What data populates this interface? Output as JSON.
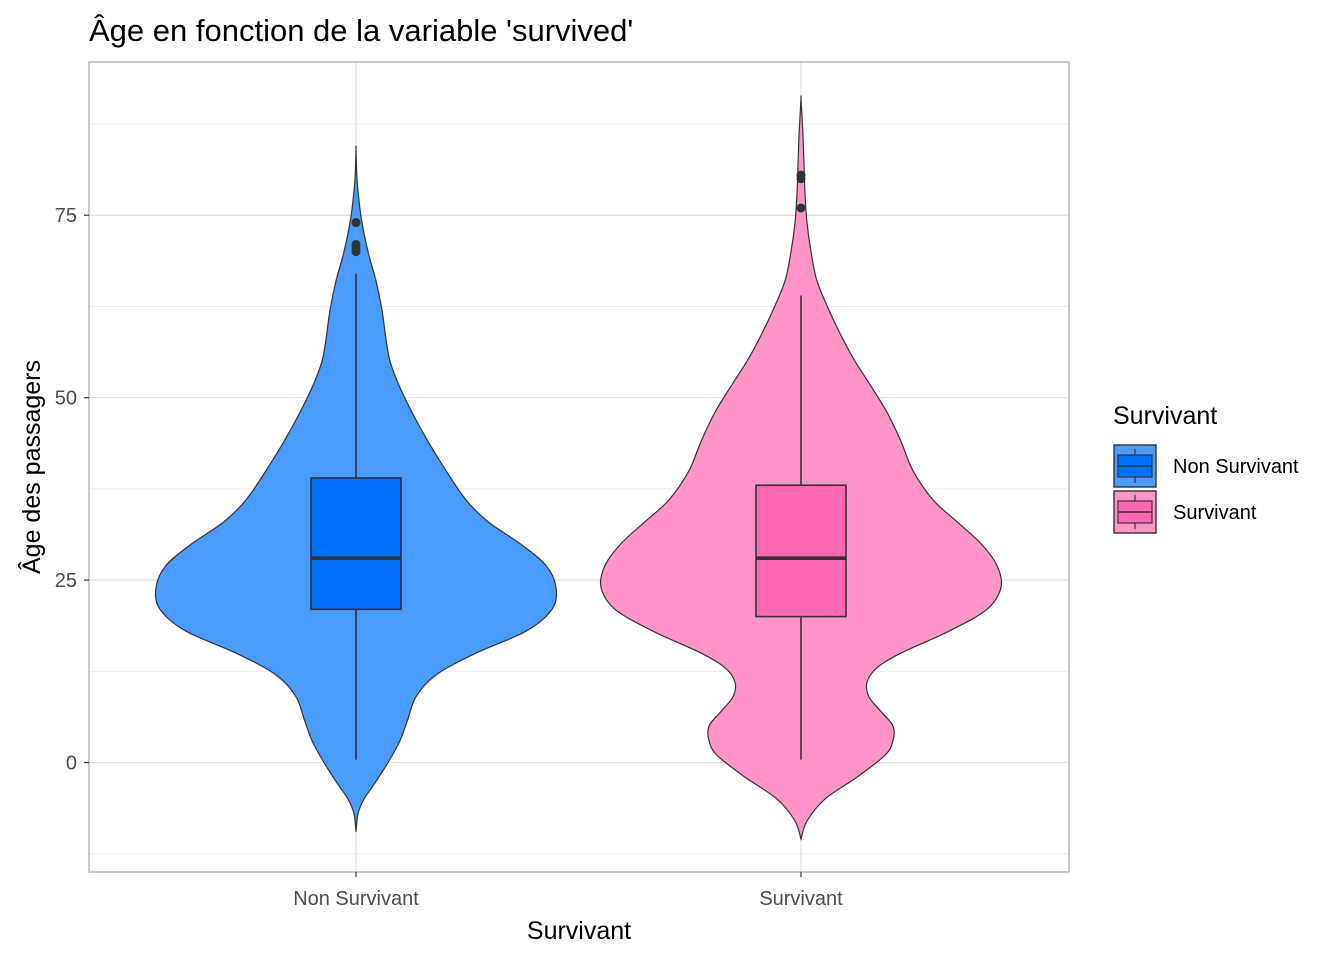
{
  "chart_data": {
    "type": "violin",
    "title": "Âge en fonction de la variable 'survived'",
    "xlabel": "Survivant",
    "ylabel": "Âge des passagers",
    "ylim": [
      -15,
      96
    ],
    "yticks": [
      0,
      25,
      50,
      75
    ],
    "grid": true,
    "legend": {
      "title": "Survivant",
      "position": "right",
      "entries": [
        "Non Survivant",
        "Survivant"
      ]
    },
    "categories": [
      "Non Survivant",
      "Survivant"
    ],
    "series": [
      {
        "name": "Non Survivant",
        "color": "#0070FF",
        "violin_color": "#4A9BFF",
        "box": {
          "q1": 21,
          "median": 28,
          "q3": 39,
          "whisker_low": 0.4,
          "whisker_high": 67
        },
        "outliers": [
          70,
          70.5,
          71,
          74
        ],
        "range": [
          -9.5,
          84
        ],
        "density": [
          [
            -9.5,
            0.0
          ],
          [
            -7,
            0.01
          ],
          [
            -5,
            0.04
          ],
          [
            -3,
            0.09
          ],
          [
            0,
            0.16
          ],
          [
            3,
            0.22
          ],
          [
            6,
            0.26
          ],
          [
            9,
            0.3
          ],
          [
            12,
            0.4
          ],
          [
            15,
            0.6
          ],
          [
            18,
            0.85
          ],
          [
            21,
            0.98
          ],
          [
            24,
            1.0
          ],
          [
            27,
            0.95
          ],
          [
            30,
            0.82
          ],
          [
            33,
            0.66
          ],
          [
            36,
            0.55
          ],
          [
            40,
            0.45
          ],
          [
            44,
            0.36
          ],
          [
            48,
            0.28
          ],
          [
            52,
            0.21
          ],
          [
            55,
            0.17
          ],
          [
            58,
            0.15
          ],
          [
            62,
            0.13
          ],
          [
            66,
            0.1
          ],
          [
            70,
            0.06
          ],
          [
            74,
            0.03
          ],
          [
            77,
            0.015
          ],
          [
            80,
            0.005
          ],
          [
            84,
            0.0
          ]
        ]
      },
      {
        "name": "Survivant",
        "color": "#FF69B4",
        "violin_color": "#FF94C9",
        "box": {
          "q1": 20,
          "median": 28,
          "q3": 38,
          "whisker_low": 0.4,
          "whisker_high": 64
        },
        "outliers": [
          76,
          80,
          80.5
        ],
        "range": [
          -10.5,
          91
        ],
        "density": [
          [
            -10.5,
            0.0
          ],
          [
            -8,
            0.03
          ],
          [
            -5,
            0.12
          ],
          [
            -2,
            0.28
          ],
          [
            1,
            0.42
          ],
          [
            3,
            0.46
          ],
          [
            5,
            0.46
          ],
          [
            7,
            0.4
          ],
          [
            9,
            0.34
          ],
          [
            11,
            0.33
          ],
          [
            13,
            0.38
          ],
          [
            15,
            0.5
          ],
          [
            18,
            0.74
          ],
          [
            21,
            0.93
          ],
          [
            24,
            1.0
          ],
          [
            27,
            0.98
          ],
          [
            30,
            0.9
          ],
          [
            33,
            0.78
          ],
          [
            36,
            0.66
          ],
          [
            40,
            0.56
          ],
          [
            44,
            0.5
          ],
          [
            48,
            0.43
          ],
          [
            52,
            0.34
          ],
          [
            55,
            0.27
          ],
          [
            58,
            0.21
          ],
          [
            62,
            0.14
          ],
          [
            66,
            0.08
          ],
          [
            70,
            0.05
          ],
          [
            74,
            0.03
          ],
          [
            78,
            0.02
          ],
          [
            82,
            0.015
          ],
          [
            86,
            0.01
          ],
          [
            88,
            0.006
          ],
          [
            91,
            0.0
          ]
        ]
      }
    ]
  }
}
